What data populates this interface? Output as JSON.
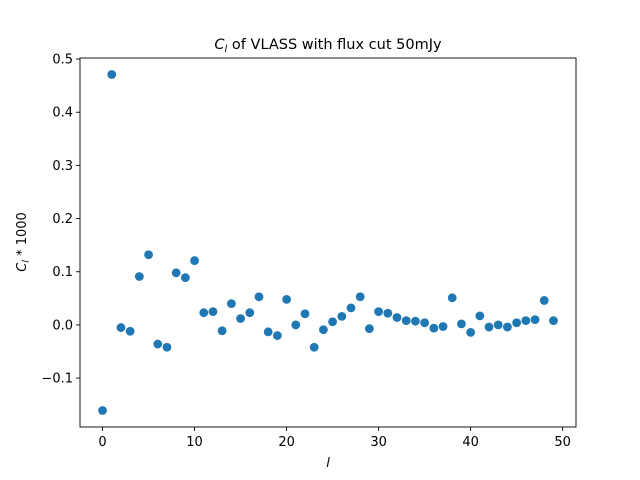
{
  "chart_data": {
    "type": "scatter",
    "title": "C_l of VLASS with flux cut 50mJy",
    "title_parts": {
      "main": "C",
      "sub": "l",
      "rest": " of VLASS with flux cut 50mJy"
    },
    "xlabel": "l",
    "ylabel": "C_l * 1000",
    "ylabel_parts": {
      "main": "C",
      "sub": "l",
      "rest": " * 1000"
    },
    "xlim": [
      -2.45,
      51.45
    ],
    "ylim": [
      -0.192,
      0.502
    ],
    "xticks": [
      0,
      10,
      20,
      30,
      40,
      50
    ],
    "xtick_labels": [
      "0",
      "10",
      "20",
      "30",
      "40",
      "50"
    ],
    "yticks": [
      -0.1,
      0.0,
      0.1,
      0.2,
      0.3,
      0.4,
      0.5
    ],
    "ytick_labels": [
      "−0.1",
      "0.0",
      "0.1",
      "0.2",
      "0.3",
      "0.4",
      "0.5"
    ],
    "grid": false,
    "marker_color": "#1f77b4",
    "series": [
      {
        "x": [
          0,
          1,
          2,
          3,
          4,
          5,
          6,
          7,
          8,
          9,
          10,
          11,
          12,
          13,
          14,
          15,
          16,
          17,
          18,
          19,
          20,
          21,
          22,
          23,
          24,
          25,
          26,
          27,
          28,
          29,
          30,
          31,
          32,
          33,
          34,
          35,
          36,
          37,
          38,
          39,
          40,
          41,
          42,
          43,
          44,
          45,
          46,
          47,
          48,
          49
        ],
        "y": [
          -0.161,
          0.471,
          -0.005,
          -0.012,
          0.091,
          0.132,
          -0.036,
          -0.042,
          0.098,
          0.089,
          0.121,
          0.023,
          0.025,
          -0.011,
          0.04,
          0.012,
          0.023,
          0.053,
          -0.013,
          -0.02,
          0.048,
          0.0,
          0.021,
          -0.042,
          -0.009,
          0.006,
          0.016,
          0.032,
          0.053,
          -0.007,
          0.025,
          0.022,
          0.014,
          0.008,
          0.007,
          0.004,
          -0.006,
          -0.003,
          0.051,
          0.002,
          -0.014,
          0.017,
          -0.004,
          0.0,
          -0.004,
          0.004,
          0.008,
          0.01,
          0.046,
          0.008
        ]
      }
    ]
  }
}
